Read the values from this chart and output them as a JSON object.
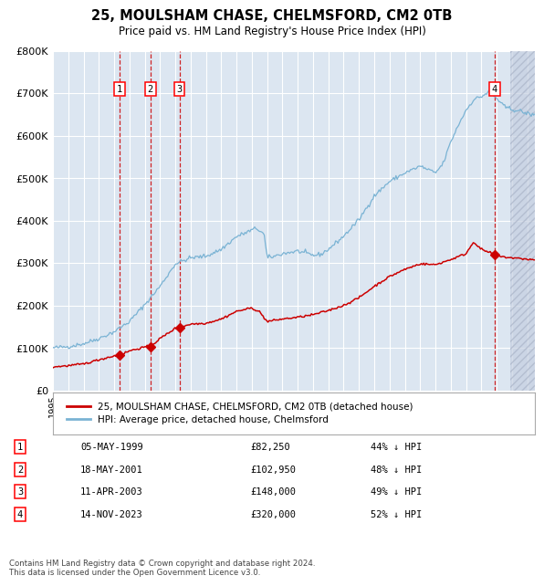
{
  "title": "25, MOULSHAM CHASE, CHELMSFORD, CM2 0TB",
  "subtitle": "Price paid vs. HM Land Registry's House Price Index (HPI)",
  "ylim": [
    0,
    800000
  ],
  "yticks": [
    0,
    100000,
    200000,
    300000,
    400000,
    500000,
    600000,
    700000,
    800000
  ],
  "ytick_labels": [
    "£0",
    "£100K",
    "£200K",
    "£300K",
    "£400K",
    "£500K",
    "£600K",
    "£700K",
    "£800K"
  ],
  "xlim_start": 1995.0,
  "xlim_end": 2026.5,
  "plot_bg_color": "#dce6f1",
  "grid_color": "#ffffff",
  "hpi_line_color": "#7ab3d4",
  "price_line_color": "#cc0000",
  "marker_color": "#cc0000",
  "dashed_line_color": "#cc0000",
  "legend_label_price": "25, MOULSHAM CHASE, CHELMSFORD, CM2 0TB (detached house)",
  "legend_label_hpi": "HPI: Average price, detached house, Chelmsford",
  "transactions": [
    {
      "num": 1,
      "date": 1999.35,
      "price": 82250,
      "label": "05-MAY-1999",
      "price_str": "£82,250",
      "hpi_str": "44% ↓ HPI"
    },
    {
      "num": 2,
      "date": 2001.37,
      "price": 102950,
      "label": "18-MAY-2001",
      "price_str": "£102,950",
      "hpi_str": "48% ↓ HPI"
    },
    {
      "num": 3,
      "date": 2003.27,
      "price": 148000,
      "label": "11-APR-2003",
      "price_str": "£148,000",
      "hpi_str": "49% ↓ HPI"
    },
    {
      "num": 4,
      "date": 2023.87,
      "price": 320000,
      "label": "14-NOV-2023",
      "price_str": "£320,000",
      "hpi_str": "52% ↓ HPI"
    }
  ],
  "footer": "Contains HM Land Registry data © Crown copyright and database right 2024.\nThis data is licensed under the Open Government Licence v3.0.",
  "hatch_start": 2024.87
}
